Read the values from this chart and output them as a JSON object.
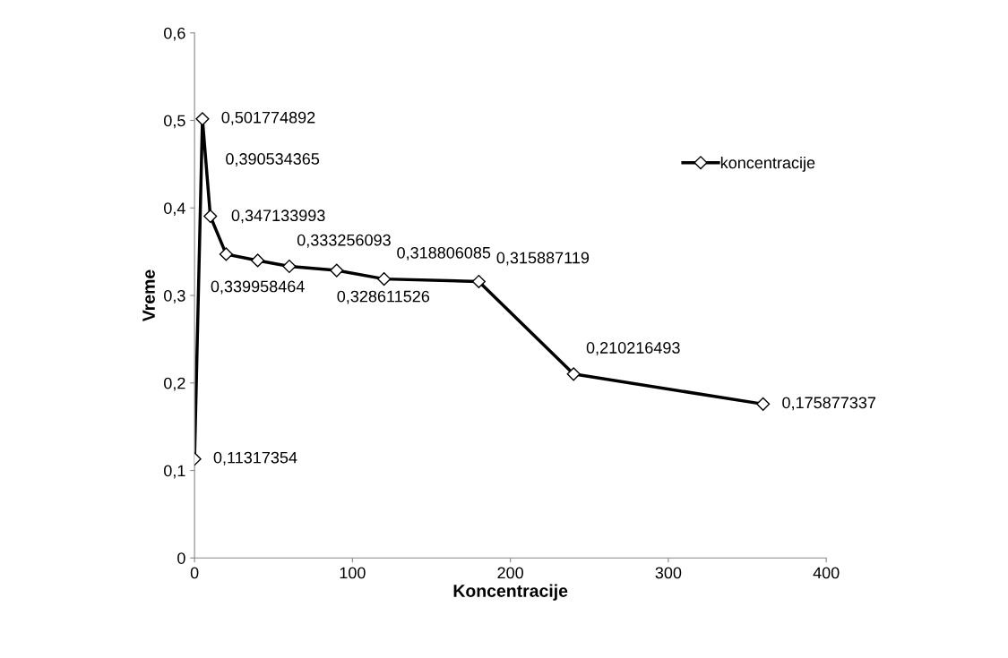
{
  "chart_data": {
    "type": "line",
    "xlabel": "Koncentracije",
    "ylabel": "Vreme",
    "x": [
      0,
      5,
      10,
      20,
      40,
      60,
      90,
      120,
      180,
      240,
      360
    ],
    "series": [
      {
        "name": "koncentracije",
        "color": "#000000",
        "values": [
          0.11317354,
          0.501774892,
          0.390534365,
          0.347133993,
          0.339958464,
          0.333256093,
          0.328611526,
          0.318806085,
          0.315887119,
          0.210216493,
          0.175877337
        ],
        "value_labels": [
          "0,11317354",
          "0,501774892",
          "0,390534365",
          "0,347133993",
          "0,339958464",
          "0,333256093",
          "0,328611526",
          "0,318806085",
          "0,315887119",
          "0,210216493",
          "0,175877337"
        ]
      }
    ],
    "xlim": [
      0,
      400
    ],
    "xticks": [
      0,
      100,
      200,
      300,
      400
    ],
    "ylim": [
      0,
      0.6
    ],
    "yticks": [
      {
        "value": 0,
        "label": "0"
      },
      {
        "value": 0.1,
        "label": "0,1"
      },
      {
        "value": 0.2,
        "label": "0,2"
      },
      {
        "value": 0.3,
        "label": "0,3"
      },
      {
        "value": 0.4,
        "label": "0,4"
      },
      {
        "value": 0.5,
        "label": "0,5"
      },
      {
        "value": 0.6,
        "label": "0,6"
      }
    ],
    "marker": "diamond",
    "line_style": "solid",
    "grid": false,
    "legend": "right"
  }
}
